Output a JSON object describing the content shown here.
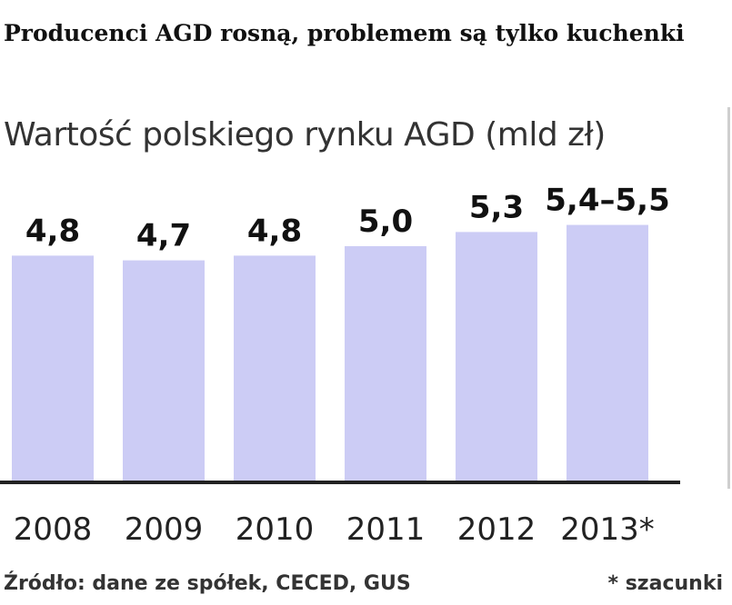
{
  "headline": "Producenci AGD rosną, problemem są tylko kuchenki",
  "chart_data": {
    "type": "bar",
    "title": "Wartość polskiego rynku AGD (mld zł)",
    "categories": [
      "2008",
      "2009",
      "2010",
      "2011",
      "2012",
      "2013*"
    ],
    "values": [
      4.8,
      4.7,
      4.8,
      5.0,
      5.3,
      5.45
    ],
    "value_labels": [
      "4,8",
      "4,7",
      "4,8",
      "5,0",
      "5,3",
      "5,4–5,5"
    ],
    "bar_color": "#ccccf5",
    "axis_color": "#222222",
    "grid": false,
    "legend": "none"
  },
  "footer": {
    "source": "Źródło: dane ze spółek, CECED, GUS",
    "note": "* szacunki"
  }
}
